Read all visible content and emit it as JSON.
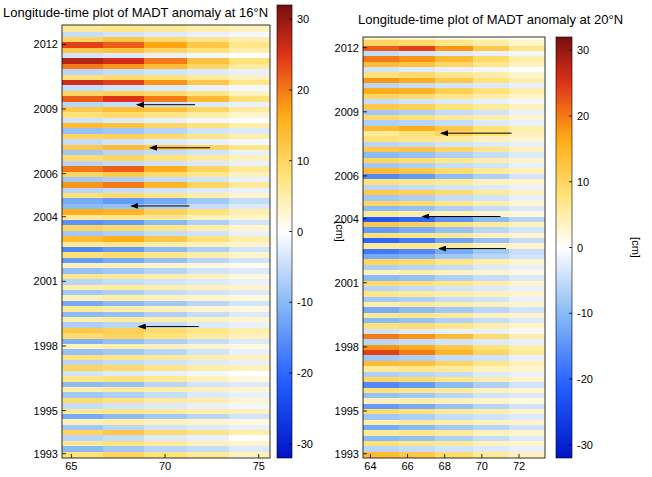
{
  "chart_data": [
    {
      "type": "heatmap",
      "title": "Longitude-time plot of MADT anomaly at 16°N",
      "x": [
        65.6,
        67.8,
        70.0,
        72.3,
        74.5
      ],
      "xlim": [
        64.5,
        75.6
      ],
      "xticks": [
        65,
        70,
        75
      ],
      "ylim": [
        1992.8,
        2012.9
      ],
      "yticks": [
        1993,
        1995,
        1998,
        2001,
        2004,
        2006,
        2009,
        2012
      ],
      "y": [
        1993,
        1993.25,
        1993.5,
        1993.75,
        1994,
        1994.25,
        1994.5,
        1994.75,
        1995,
        1995.25,
        1995.5,
        1995.75,
        1996,
        1996.25,
        1996.5,
        1996.75,
        1997,
        1997.25,
        1997.5,
        1997.75,
        1998,
        1998.25,
        1998.5,
        1998.75,
        1999,
        1999.25,
        1999.5,
        1999.75,
        2000,
        2000.25,
        2000.5,
        2000.75,
        2001,
        2001.25,
        2001.5,
        2001.75,
        2002,
        2002.25,
        2002.5,
        2002.75,
        2003,
        2003.25,
        2003.5,
        2003.75,
        2004,
        2004.25,
        2004.5,
        2004.75,
        2005,
        2005.25,
        2005.5,
        2005.75,
        2006,
        2006.25,
        2006.5,
        2006.75,
        2007,
        2007.25,
        2007.5,
        2007.75,
        2008,
        2008.25,
        2008.5,
        2008.75,
        2009,
        2009.25,
        2009.5,
        2009.75,
        2010,
        2010.25,
        2010.5,
        2010.75,
        2011,
        2011.25,
        2011.5,
        2011.75,
        2012,
        2012.25,
        2012.5,
        2012.75
      ],
      "z": [
        [
          8,
          10,
          8,
          6,
          4
        ],
        [
          -10,
          -8,
          -6,
          -5,
          -3
        ],
        [
          6,
          8,
          6,
          4,
          3
        ],
        [
          -6,
          -5,
          -3,
          -2,
          0
        ],
        [
          10,
          12,
          9,
          7,
          5
        ],
        [
          -8,
          -6,
          -4,
          -3,
          -2
        ],
        [
          4,
          5,
          4,
          3,
          2
        ],
        [
          -12,
          -10,
          -8,
          -6,
          -4
        ],
        [
          6,
          7,
          6,
          5,
          4
        ],
        [
          -5,
          -4,
          -3,
          -2,
          -1
        ],
        [
          9,
          8,
          6,
          5,
          3
        ],
        [
          -8,
          -7,
          -5,
          -3,
          -2
        ],
        [
          5,
          6,
          5,
          4,
          3
        ],
        [
          -10,
          -9,
          -6,
          -4,
          -3
        ],
        [
          7,
          8,
          6,
          4,
          2
        ],
        [
          -4,
          -3,
          -2,
          -1,
          0
        ],
        [
          10,
          9,
          7,
          5,
          4
        ],
        [
          -6,
          -5,
          -4,
          -3,
          -2
        ],
        [
          8,
          7,
          6,
          5,
          4
        ],
        [
          -9,
          -8,
          -6,
          -4,
          -2
        ],
        [
          4,
          5,
          4,
          3,
          2
        ],
        [
          -11,
          -9,
          -7,
          -5,
          -3
        ],
        [
          9,
          10,
          8,
          6,
          4
        ],
        [
          12,
          11,
          9,
          7,
          5
        ],
        [
          -7,
          -6,
          -5,
          -3,
          -2
        ],
        [
          5,
          6,
          5,
          4,
          3
        ],
        [
          -10,
          -9,
          -7,
          -5,
          -3
        ],
        [
          6,
          5,
          4,
          3,
          2
        ],
        [
          -12,
          -10,
          -8,
          -6,
          -4
        ],
        [
          4,
          5,
          4,
          3,
          2
        ],
        [
          -8,
          -7,
          -5,
          -4,
          -3
        ],
        [
          5,
          6,
          5,
          4,
          3
        ],
        [
          -6,
          -5,
          -4,
          -3,
          -2
        ],
        [
          7,
          6,
          5,
          4,
          2
        ],
        [
          -9,
          -8,
          -6,
          -4,
          -3
        ],
        [
          4,
          4,
          3,
          2,
          1
        ],
        [
          -14,
          -12,
          -9,
          -6,
          -4
        ],
        [
          8,
          9,
          7,
          5,
          3
        ],
        [
          -16,
          -14,
          -10,
          -7,
          -4
        ],
        [
          6,
          7,
          5,
          4,
          3
        ],
        [
          14,
          16,
          12,
          8,
          5
        ],
        [
          -8,
          -7,
          -5,
          -4,
          -2
        ],
        [
          10,
          9,
          7,
          5,
          3
        ],
        [
          -15,
          -14,
          -10,
          -7,
          -4
        ],
        [
          6,
          7,
          6,
          4,
          3
        ],
        [
          16,
          15,
          11,
          8,
          5
        ],
        [
          -10,
          -9,
          -7,
          -5,
          -3
        ],
        [
          -12,
          -14,
          -12,
          -8,
          -5
        ],
        [
          8,
          9,
          7,
          5,
          3
        ],
        [
          -6,
          -5,
          -4,
          -3,
          -2
        ],
        [
          18,
          20,
          15,
          10,
          6
        ],
        [
          -8,
          -7,
          -5,
          -4,
          -2
        ],
        [
          10,
          12,
          9,
          7,
          4
        ],
        [
          20,
          22,
          16,
          10,
          6
        ],
        [
          -6,
          -5,
          -4,
          -3,
          -2
        ],
        [
          9,
          10,
          8,
          6,
          4
        ],
        [
          -8,
          -6,
          -5,
          -4,
          -2
        ],
        [
          12,
          14,
          12,
          10,
          7
        ],
        [
          -5,
          -4,
          -3,
          -2,
          -1
        ],
        [
          10,
          11,
          9,
          7,
          5
        ],
        [
          -9,
          -8,
          -6,
          -4,
          -3
        ],
        [
          14,
          13,
          10,
          8,
          5
        ],
        [
          -4,
          -3,
          -2,
          -1,
          0
        ],
        [
          8,
          9,
          7,
          5,
          3
        ],
        [
          12,
          14,
          13,
          10,
          6
        ],
        [
          -6,
          -5,
          -4,
          -3,
          -2
        ],
        [
          22,
          25,
          20,
          14,
          8
        ],
        [
          10,
          11,
          9,
          7,
          4
        ],
        [
          -5,
          -4,
          -3,
          -2,
          -1
        ],
        [
          26,
          24,
          18,
          12,
          7
        ],
        [
          8,
          9,
          8,
          6,
          4
        ],
        [
          -6,
          -5,
          -4,
          -3,
          -2
        ],
        [
          20,
          18,
          14,
          10,
          6
        ],
        [
          28,
          26,
          20,
          13,
          8
        ],
        [
          -4,
          -3,
          -2,
          -1,
          0
        ],
        [
          12,
          13,
          10,
          8,
          5
        ],
        [
          24,
          22,
          17,
          12,
          7
        ],
        [
          10,
          12,
          9,
          7,
          5
        ],
        [
          -5,
          -4,
          -3,
          -2,
          -1
        ],
        [
          6,
          7,
          6,
          5,
          4
        ]
      ],
      "colorbar": {
        "range": [
          -32,
          32
        ],
        "ticks": [
          30,
          20,
          10,
          0,
          -10,
          -20,
          -30
        ],
        "label": "[cm]"
      },
      "arrows": [
        {
          "x0": 71.6,
          "x1": 68.5,
          "y": 2009.2
        },
        {
          "x0": 72.4,
          "x1": 69.2,
          "y": 2007.2
        },
        {
          "x0": 71.3,
          "x1": 68.2,
          "y": 2004.5
        },
        {
          "x0": 71.8,
          "x1": 68.6,
          "y": 1998.9
        }
      ]
    },
    {
      "type": "heatmap",
      "title": "Longitude-time plot of MADT anomaly at 20°N",
      "x": [
        64.6,
        66.5,
        68.5,
        70.5,
        72.4
      ],
      "xlim": [
        63.6,
        73.4
      ],
      "xticks": [
        64,
        66,
        68,
        70,
        72
      ],
      "ylim": [
        1992.8,
        2012.5
      ],
      "yticks": [
        1993,
        1995,
        1998,
        2001,
        2004,
        2006,
        2009,
        2012
      ],
      "y": [
        1993,
        1993.25,
        1993.5,
        1993.75,
        1994,
        1994.25,
        1994.5,
        1994.75,
        1995,
        1995.25,
        1995.5,
        1995.75,
        1996,
        1996.25,
        1996.5,
        1996.75,
        1997,
        1997.25,
        1997.5,
        1997.75,
        1998,
        1998.25,
        1998.5,
        1998.75,
        1999,
        1999.25,
        1999.5,
        1999.75,
        2000,
        2000.25,
        2000.5,
        2000.75,
        2001,
        2001.25,
        2001.5,
        2001.75,
        2002,
        2002.25,
        2002.5,
        2002.75,
        2003,
        2003.25,
        2003.5,
        2003.75,
        2004,
        2004.25,
        2004.5,
        2004.75,
        2005,
        2005.25,
        2005.5,
        2005.75,
        2006,
        2006.25,
        2006.5,
        2006.75,
        2007,
        2007.25,
        2007.5,
        2007.75,
        2008,
        2008.25,
        2008.5,
        2008.75,
        2009,
        2009.25,
        2009.5,
        2009.75,
        2010,
        2010.25,
        2010.5,
        2010.75,
        2011,
        2011.25,
        2011.5,
        2011.75,
        2012,
        2012.25,
        2012.5
      ],
      "z": [
        [
          14,
          12,
          9,
          6,
          4
        ],
        [
          -6,
          -5,
          -4,
          -3,
          -2
        ],
        [
          8,
          7,
          6,
          4,
          3
        ],
        [
          -10,
          -9,
          -7,
          -5,
          -3
        ],
        [
          6,
          7,
          6,
          4,
          3
        ],
        [
          -12,
          -10,
          -8,
          -6,
          -4
        ],
        [
          5,
          6,
          5,
          4,
          3
        ],
        [
          -8,
          -7,
          -5,
          -4,
          -3
        ],
        [
          9,
          8,
          6,
          5,
          3
        ],
        [
          -14,
          -12,
          -9,
          -6,
          -4
        ],
        [
          4,
          5,
          4,
          3,
          2
        ],
        [
          -9,
          -8,
          -6,
          -4,
          -3
        ],
        [
          8,
          7,
          6,
          4,
          3
        ],
        [
          -16,
          -14,
          -10,
          -7,
          -4
        ],
        [
          10,
          9,
          7,
          5,
          3
        ],
        [
          -7,
          -6,
          -5,
          -3,
          -2
        ],
        [
          6,
          7,
          6,
          4,
          3
        ],
        [
          14,
          13,
          10,
          7,
          4
        ],
        [
          -8,
          -7,
          -5,
          -4,
          -2
        ],
        [
          24,
          20,
          15,
          10,
          6
        ],
        [
          18,
          16,
          12,
          8,
          5
        ],
        [
          -6,
          -5,
          -4,
          -3,
          -2
        ],
        [
          20,
          18,
          14,
          9,
          5
        ],
        [
          -4,
          -3,
          -2,
          -2,
          -1
        ],
        [
          8,
          9,
          7,
          5,
          3
        ],
        [
          -10,
          -9,
          -7,
          -5,
          -3
        ],
        [
          6,
          7,
          6,
          4,
          3
        ],
        [
          -12,
          -10,
          -8,
          -6,
          -4
        ],
        [
          5,
          6,
          5,
          4,
          3
        ],
        [
          -8,
          -7,
          -5,
          -4,
          -2
        ],
        [
          7,
          6,
          5,
          4,
          3
        ],
        [
          -6,
          -5,
          -4,
          -3,
          -2
        ],
        [
          9,
          8,
          7,
          5,
          3
        ],
        [
          -10,
          -9,
          -7,
          -5,
          -3
        ],
        [
          4,
          5,
          4,
          3,
          2
        ],
        [
          -7,
          -6,
          -5,
          -3,
          -2
        ],
        [
          10,
          9,
          7,
          5,
          3
        ],
        [
          -12,
          -11,
          -8,
          -6,
          -4
        ],
        [
          -18,
          -16,
          -12,
          -8,
          -5
        ],
        [
          6,
          7,
          6,
          4,
          3
        ],
        [
          -20,
          -18,
          -13,
          -9,
          -5
        ],
        [
          8,
          7,
          6,
          4,
          3
        ],
        [
          -14,
          -12,
          -9,
          -6,
          -4
        ],
        [
          12,
          11,
          8,
          6,
          4
        ],
        [
          -22,
          -20,
          -15,
          -10,
          -6
        ],
        [
          6,
          5,
          4,
          3,
          2
        ],
        [
          -10,
          -9,
          -7,
          -5,
          -3
        ],
        [
          10,
          9,
          7,
          5,
          3
        ],
        [
          -8,
          -7,
          -5,
          -4,
          -2
        ],
        [
          12,
          11,
          9,
          6,
          4
        ],
        [
          -6,
          -5,
          -4,
          -3,
          -2
        ],
        [
          8,
          7,
          6,
          4,
          3
        ],
        [
          -16,
          -14,
          -10,
          -7,
          -4
        ],
        [
          14,
          12,
          9,
          6,
          4
        ],
        [
          -8,
          -7,
          -5,
          -4,
          -2
        ],
        [
          10,
          9,
          7,
          5,
          3
        ],
        [
          -10,
          -9,
          -7,
          -5,
          -3
        ],
        [
          12,
          13,
          10,
          7,
          4
        ],
        [
          -6,
          -5,
          -4,
          -3,
          -2
        ],
        [
          8,
          7,
          6,
          4,
          3
        ],
        [
          6,
          8,
          10,
          8,
          4
        ],
        [
          14,
          16,
          12,
          8,
          5
        ],
        [
          -7,
          -6,
          -5,
          -3,
          -2
        ],
        [
          9,
          8,
          6,
          5,
          3
        ],
        [
          -8,
          -7,
          -5,
          -4,
          -2
        ],
        [
          12,
          11,
          8,
          6,
          4
        ],
        [
          -5,
          -4,
          -3,
          -2,
          -1
        ],
        [
          10,
          9,
          7,
          5,
          3
        ],
        [
          16,
          15,
          11,
          8,
          5
        ],
        [
          -6,
          -5,
          -4,
          -3,
          -2
        ],
        [
          18,
          16,
          12,
          8,
          5
        ],
        [
          8,
          9,
          7,
          5,
          3
        ],
        [
          -4,
          -3,
          -2,
          -1,
          0
        ],
        [
          14,
          13,
          10,
          7,
          4
        ],
        [
          20,
          18,
          14,
          9,
          5
        ],
        [
          -5,
          -4,
          -3,
          -2,
          -1
        ],
        [
          22,
          24,
          18,
          12,
          7
        ],
        [
          10,
          9,
          7,
          5,
          3
        ],
        [
          4,
          3,
          2,
          2,
          1
        ]
      ],
      "colorbar": {
        "range": [
          -32,
          32
        ],
        "ticks": [
          30,
          20,
          10,
          0,
          -10,
          -20,
          -30
        ],
        "label": "[cm]"
      },
      "arrows": [
        {
          "x0": 71.6,
          "x1": 67.8,
          "y": 2008.0
        },
        {
          "x0": 71.0,
          "x1": 66.8,
          "y": 2004.1
        },
        {
          "x0": 71.3,
          "x1": 67.7,
          "y": 2002.6
        }
      ]
    }
  ]
}
